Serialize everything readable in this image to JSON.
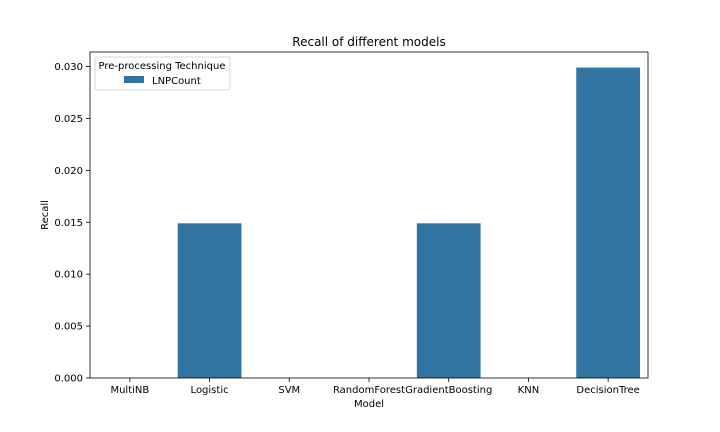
{
  "chart_data": {
    "type": "bar",
    "title": "Recall of different models",
    "xlabel": "Model",
    "ylabel": "Recall",
    "categories": [
      "MultiNB",
      "Logistic",
      "SVM",
      "RandomForest",
      "GradientBoosting",
      "KNN",
      "DecisionTree"
    ],
    "series": [
      {
        "name": "LNPCount",
        "color": "#3274a1",
        "values": [
          0.0,
          0.0149,
          0.0,
          0.0,
          0.0149,
          0.0,
          0.0299
        ]
      }
    ],
    "ylim": [
      0,
      0.0314
    ],
    "yticks": [
      0.0,
      0.005,
      0.01,
      0.015,
      0.02,
      0.025,
      0.03
    ],
    "ytick_labels": [
      "0.000",
      "0.005",
      "0.010",
      "0.015",
      "0.020",
      "0.025",
      "0.030"
    ],
    "grid": false,
    "legend": {
      "title": "Pre-processing Technique",
      "placement": "top-left"
    }
  }
}
